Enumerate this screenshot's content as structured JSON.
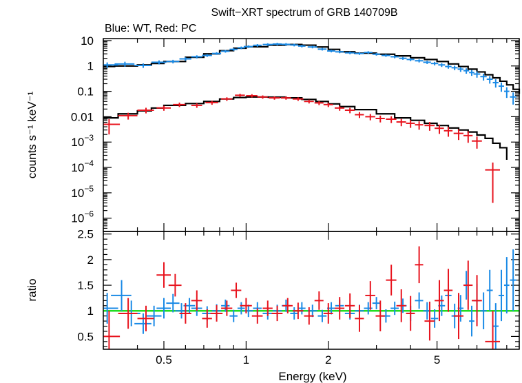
{
  "title": "Swift−XRT spectrum of GRB 140709B",
  "subtitle": "Blue: WT, Red: PC",
  "colors": {
    "wt": "#1a8ae6",
    "pc": "#e8141e",
    "model": "#000000",
    "unity": "#22dd22"
  },
  "chart_data": [
    {
      "type": "scatter",
      "panel": "spectrum",
      "ylabel": "counts s⁻¹ keV⁻¹",
      "xscale": "log",
      "yscale": "log",
      "xlim": [
        0.3,
        10.0
      ],
      "ylim": [
        3e-07,
        12
      ],
      "yticks": [
        {
          "value": 10,
          "label": "10"
        },
        {
          "value": 1,
          "label": "1"
        },
        {
          "value": 0.1,
          "label": "0.1"
        },
        {
          "value": 0.01,
          "label": "0.01"
        },
        {
          "value": 0.001,
          "base": "10",
          "exp": "−3"
        },
        {
          "value": 0.0001,
          "base": "10",
          "exp": "−4"
        },
        {
          "value": 1e-05,
          "base": "10",
          "exp": "−5"
        },
        {
          "value": 1e-06,
          "base": "10",
          "exp": "−6"
        }
      ],
      "series": [
        {
          "id": "wt",
          "color": "#1a8ae6",
          "x": [
            0.31,
            0.36,
            0.42,
            0.48,
            0.54,
            0.6,
            0.66,
            0.72,
            0.78,
            0.84,
            0.9,
            0.96,
            1.02,
            1.1,
            1.2,
            1.3,
            1.4,
            1.5,
            1.6,
            1.75,
            1.9,
            2.05,
            2.2,
            2.4,
            2.6,
            2.8,
            3.0,
            3.25,
            3.5,
            3.75,
            4.0,
            4.3,
            4.6,
            4.9,
            5.2,
            5.5,
            5.8,
            6.1,
            6.4,
            6.7,
            7.0,
            7.4,
            7.8,
            8.2,
            8.6,
            9.0,
            9.5
          ],
          "y": [
            1.1,
            1.2,
            1.05,
            1.4,
            1.5,
            1.9,
            2.3,
            2.6,
            3.1,
            3.8,
            4.5,
            5.2,
            5.8,
            6.5,
            7.0,
            7.3,
            7.1,
            6.7,
            6.1,
            5.6,
            4.6,
            3.9,
            3.6,
            3.3,
            3.1,
            3.4,
            2.9,
            2.6,
            2.3,
            2.0,
            1.8,
            1.6,
            1.4,
            1.25,
            1.1,
            0.95,
            0.85,
            0.75,
            0.65,
            0.55,
            0.48,
            0.38,
            0.3,
            0.22,
            0.16,
            0.1,
            0.06
          ],
          "xerr": [
            0.03,
            0.03,
            0.03,
            0.03,
            0.03,
            0.03,
            0.03,
            0.03,
            0.03,
            0.03,
            0.03,
            0.03,
            0.04,
            0.04,
            0.05,
            0.05,
            0.05,
            0.05,
            0.05,
            0.07,
            0.07,
            0.07,
            0.08,
            0.1,
            0.1,
            0.1,
            0.1,
            0.12,
            0.12,
            0.12,
            0.13,
            0.15,
            0.15,
            0.15,
            0.15,
            0.15,
            0.15,
            0.15,
            0.15,
            0.15,
            0.2,
            0.2,
            0.2,
            0.2,
            0.2,
            0.2,
            0.25
          ],
          "yerr_frac": [
            0.25,
            0.22,
            0.2,
            0.18,
            0.16,
            0.15,
            0.14,
            0.13,
            0.12,
            0.12,
            0.12,
            0.12,
            0.12,
            0.12,
            0.12,
            0.12,
            0.12,
            0.12,
            0.12,
            0.12,
            0.12,
            0.12,
            0.12,
            0.12,
            0.12,
            0.12,
            0.12,
            0.12,
            0.13,
            0.13,
            0.14,
            0.14,
            0.15,
            0.16,
            0.17,
            0.18,
            0.2,
            0.22,
            0.24,
            0.26,
            0.28,
            0.3,
            0.33,
            0.36,
            0.4,
            0.45,
            0.5
          ]
        },
        {
          "id": "pc",
          "color": "#e8141e",
          "x": [
            0.315,
            0.37,
            0.43,
            0.5,
            0.57,
            0.66,
            0.75,
            0.85,
            0.95,
            1.05,
            1.15,
            1.27,
            1.4,
            1.55,
            1.7,
            1.85,
            2.0,
            2.2,
            2.4,
            2.6,
            2.85,
            3.1,
            3.4,
            3.7,
            4.0,
            4.3,
            4.7,
            5.1,
            5.5,
            6.0,
            6.5,
            7.0,
            8.0
          ],
          "y": [
            0.005,
            0.011,
            0.018,
            0.022,
            0.03,
            0.028,
            0.036,
            0.05,
            0.07,
            0.067,
            0.06,
            0.055,
            0.055,
            0.05,
            0.04,
            0.035,
            0.03,
            0.022,
            0.018,
            0.012,
            0.01,
            0.0085,
            0.008,
            0.0062,
            0.0055,
            0.0048,
            0.0045,
            0.0035,
            0.0028,
            0.0022,
            0.0018,
            0.0011,
            8e-05
          ],
          "xerr": [
            0.03,
            0.03,
            0.03,
            0.03,
            0.03,
            0.03,
            0.04,
            0.04,
            0.04,
            0.05,
            0.05,
            0.06,
            0.06,
            0.07,
            0.07,
            0.07,
            0.08,
            0.09,
            0.1,
            0.1,
            0.12,
            0.12,
            0.15,
            0.15,
            0.15,
            0.15,
            0.2,
            0.2,
            0.2,
            0.25,
            0.25,
            0.3,
            0.5
          ],
          "yerr_frac": [
            0.6,
            0.3,
            0.25,
            0.22,
            0.2,
            0.2,
            0.18,
            0.16,
            0.15,
            0.15,
            0.15,
            0.15,
            0.15,
            0.16,
            0.17,
            0.18,
            0.2,
            0.22,
            0.24,
            0.26,
            0.28,
            0.3,
            0.3,
            0.32,
            0.34,
            0.36,
            0.38,
            0.4,
            0.42,
            0.45,
            0.48,
            0.5,
            0.95
          ]
        }
      ],
      "models": [
        {
          "id": "wt-model",
          "color": "#000000",
          "x": [
            0.3,
            0.33,
            0.4,
            0.45,
            0.5,
            0.6,
            0.7,
            0.8,
            0.9,
            1.0,
            1.2,
            1.4,
            1.6,
            1.8,
            2.0,
            2.2,
            2.5,
            3.0,
            3.5,
            4.0,
            4.5,
            5.0,
            5.5,
            6.0,
            6.5,
            7.0,
            7.5,
            8.0,
            8.5,
            9.0,
            9.5,
            10.0
          ],
          "y": [
            0.95,
            1.0,
            1.1,
            1.25,
            1.5,
            2.2,
            3.0,
            4.0,
            5.0,
            5.7,
            6.6,
            7.0,
            6.6,
            5.6,
            4.5,
            3.6,
            3.2,
            2.9,
            2.5,
            2.1,
            1.8,
            1.5,
            1.2,
            0.95,
            0.75,
            0.58,
            0.45,
            0.34,
            0.25,
            0.18,
            0.12,
            0.08
          ]
        },
        {
          "id": "pc-model",
          "color": "#000000",
          "x": [
            0.3,
            0.34,
            0.4,
            0.45,
            0.5,
            0.6,
            0.7,
            0.8,
            0.9,
            1.0,
            1.2,
            1.4,
            1.6,
            1.8,
            2.0,
            2.2,
            2.5,
            3.0,
            3.5,
            4.0,
            4.5,
            5.0,
            5.5,
            6.0,
            6.5,
            7.0,
            7.5,
            8.0,
            8.5,
            9.0
          ],
          "y": [
            0.009,
            0.013,
            0.017,
            0.022,
            0.028,
            0.033,
            0.04,
            0.05,
            0.057,
            0.06,
            0.059,
            0.055,
            0.048,
            0.04,
            0.032,
            0.025,
            0.019,
            0.013,
            0.009,
            0.0072,
            0.0055,
            0.0045,
            0.0036,
            0.003,
            0.0025,
            0.0019,
            0.0014,
            0.0009,
            0.0006,
            0.0002
          ]
        }
      ]
    },
    {
      "type": "scatter",
      "panel": "ratio",
      "xlabel": "Energy (keV)",
      "ylabel": "ratio",
      "xscale": "log",
      "xlim": [
        0.3,
        10.0
      ],
      "ylim": [
        0.25,
        2.55
      ],
      "xticks": [
        {
          "value": 0.5,
          "label": "0.5"
        },
        {
          "value": 1,
          "label": "1"
        },
        {
          "value": 2,
          "label": "2"
        },
        {
          "value": 5,
          "label": "5"
        }
      ],
      "yticks": [
        {
          "value": 0.5,
          "label": "0.5"
        },
        {
          "value": 1,
          "label": "1"
        },
        {
          "value": 1.5,
          "label": "1.5"
        },
        {
          "value": 2,
          "label": "2"
        },
        {
          "value": 2.5,
          "label": "2.5"
        }
      ],
      "unity": 1,
      "series": [
        {
          "id": "wt-ratio",
          "color": "#1a8ae6",
          "x": [
            0.31,
            0.35,
            0.38,
            0.42,
            0.46,
            0.5,
            0.54,
            0.58,
            0.62,
            0.66,
            0.72,
            0.78,
            0.84,
            0.9,
            0.96,
            1.02,
            1.1,
            1.2,
            1.3,
            1.4,
            1.5,
            1.6,
            1.75,
            1.9,
            2.05,
            2.2,
            2.4,
            2.6,
            2.8,
            3.0,
            3.25,
            3.5,
            3.75,
            4.0,
            4.3,
            4.6,
            4.9,
            5.2,
            5.5,
            5.8,
            6.1,
            6.4,
            6.7,
            7.0,
            7.4,
            7.8,
            8.2,
            8.6,
            9.0,
            9.5
          ],
          "y": [
            1.05,
            1.3,
            0.95,
            0.75,
            0.9,
            1.05,
            1.15,
            1.0,
            1.1,
            1.05,
            0.95,
            1.0,
            1.1,
            0.9,
            1.05,
            1.0,
            1.05,
            0.95,
            1.0,
            1.1,
            0.95,
            1.05,
            1.0,
            0.9,
            1.05,
            1.1,
            0.95,
            1.0,
            1.05,
            1.15,
            0.9,
            1.05,
            1.1,
            0.95,
            1.2,
            1.0,
            0.85,
            1.1,
            1.3,
            0.9,
            1.05,
            1.5,
            0.8,
            1.2,
            1.0,
            1.4,
            0.7,
            1.3,
            1.5,
            1.6
          ],
          "yerr": [
            0.3,
            0.3,
            0.25,
            0.2,
            0.2,
            0.2,
            0.18,
            0.15,
            0.15,
            0.15,
            0.14,
            0.13,
            0.12,
            0.12,
            0.12,
            0.12,
            0.12,
            0.12,
            0.12,
            0.12,
            0.12,
            0.12,
            0.12,
            0.12,
            0.12,
            0.12,
            0.12,
            0.12,
            0.12,
            0.12,
            0.13,
            0.13,
            0.14,
            0.15,
            0.16,
            0.17,
            0.18,
            0.2,
            0.22,
            0.24,
            0.26,
            0.28,
            0.3,
            0.33,
            0.36,
            0.4,
            0.45,
            0.5,
            0.55,
            0.6
          ],
          "xerr": [
            0.03,
            0.03,
            0.03,
            0.03,
            0.03,
            0.03,
            0.03,
            0.03,
            0.03,
            0.03,
            0.03,
            0.03,
            0.03,
            0.03,
            0.03,
            0.04,
            0.04,
            0.05,
            0.05,
            0.05,
            0.05,
            0.05,
            0.07,
            0.07,
            0.07,
            0.08,
            0.1,
            0.1,
            0.1,
            0.1,
            0.12,
            0.12,
            0.12,
            0.13,
            0.15,
            0.15,
            0.15,
            0.15,
            0.15,
            0.15,
            0.15,
            0.15,
            0.15,
            0.2,
            0.2,
            0.2,
            0.2,
            0.2,
            0.2,
            0.25
          ]
        },
        {
          "id": "pc-ratio",
          "color": "#e8141e",
          "x": [
            0.315,
            0.37,
            0.43,
            0.5,
            0.55,
            0.6,
            0.66,
            0.72,
            0.78,
            0.85,
            0.92,
            1.0,
            1.1,
            1.2,
            1.3,
            1.42,
            1.55,
            1.7,
            1.85,
            2.0,
            2.2,
            2.4,
            2.6,
            2.85,
            3.1,
            3.4,
            3.7,
            4.0,
            4.3,
            4.7,
            5.1,
            5.5,
            6.0,
            6.5,
            7.0,
            8.0
          ],
          "y": [
            0.5,
            0.95,
            0.85,
            1.7,
            1.5,
            0.95,
            1.2,
            0.85,
            0.95,
            1.05,
            1.4,
            1.1,
            0.9,
            1.05,
            0.95,
            1.1,
            1.0,
            0.9,
            1.2,
            0.95,
            1.05,
            1.1,
            0.85,
            1.3,
            0.9,
            1.6,
            1.1,
            0.95,
            1.9,
            0.8,
            1.2,
            1.4,
            0.9,
            1.5,
            1.2,
            0.4
          ],
          "yerr": [
            0.5,
            0.3,
            0.25,
            0.25,
            0.22,
            0.2,
            0.2,
            0.18,
            0.16,
            0.15,
            0.15,
            0.15,
            0.15,
            0.15,
            0.15,
            0.15,
            0.16,
            0.17,
            0.18,
            0.2,
            0.22,
            0.24,
            0.26,
            0.28,
            0.3,
            0.3,
            0.32,
            0.34,
            0.36,
            0.38,
            0.4,
            0.42,
            0.45,
            0.48,
            0.5,
            0.6
          ],
          "xerr": [
            0.03,
            0.03,
            0.03,
            0.03,
            0.03,
            0.03,
            0.03,
            0.03,
            0.04,
            0.04,
            0.04,
            0.05,
            0.05,
            0.05,
            0.06,
            0.06,
            0.07,
            0.07,
            0.07,
            0.08,
            0.09,
            0.1,
            0.1,
            0.12,
            0.12,
            0.15,
            0.15,
            0.15,
            0.15,
            0.2,
            0.2,
            0.2,
            0.25,
            0.25,
            0.3,
            0.5
          ]
        }
      ]
    }
  ]
}
